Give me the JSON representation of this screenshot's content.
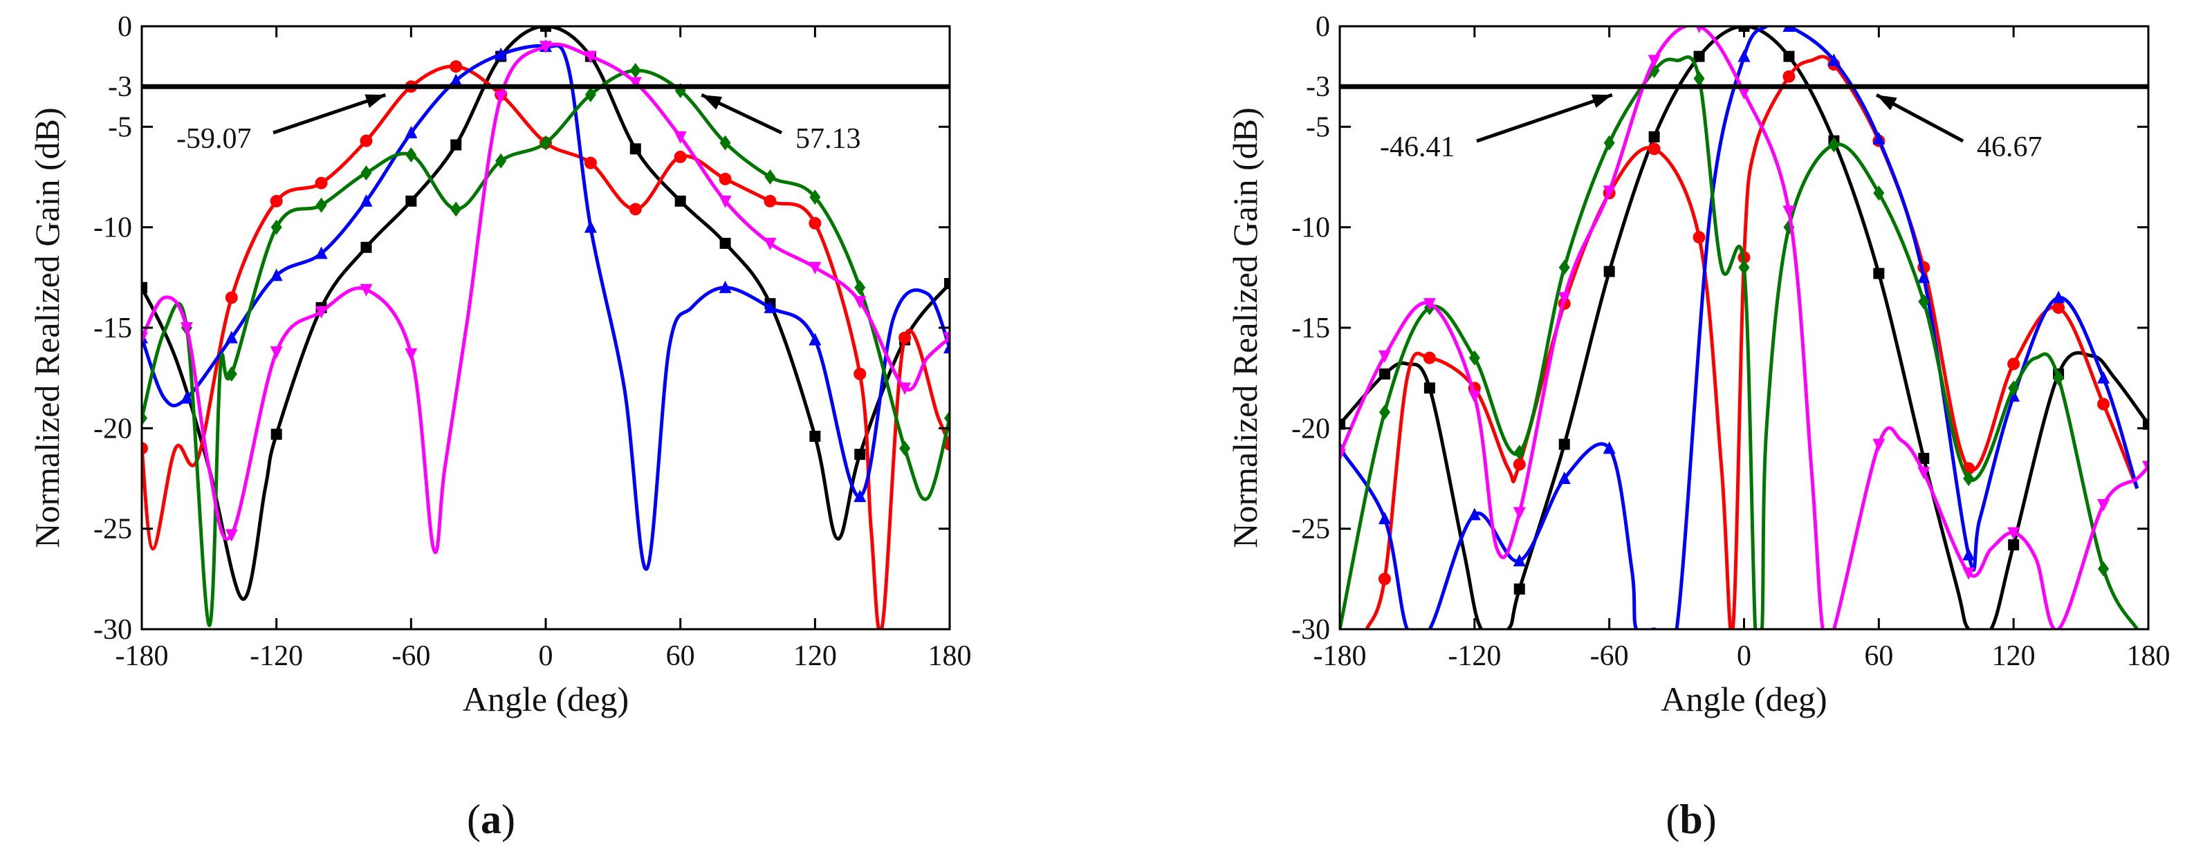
{
  "chart_data": [
    {
      "type": "line",
      "panel_label_open": "(",
      "panel_label_letter": "a",
      "panel_label_close": ")",
      "xlabel": "Angle (deg)",
      "ylabel": "Normalized Realized Gain (dB)",
      "xlim": [
        -180,
        180
      ],
      "ylim": [
        -30,
        0
      ],
      "xticks": [
        -180,
        -120,
        -60,
        0,
        60,
        120,
        180
      ],
      "xtick_labels": [
        "-180",
        "-120",
        "-60",
        "0",
        "60",
        "120",
        "180"
      ],
      "yticks": [
        0,
        -3,
        -5,
        -10,
        -15,
        -20,
        -25,
        -30
      ],
      "ytick_labels": [
        "0",
        "-3",
        "-5",
        "-10",
        "-15",
        "-20",
        "-25",
        "-30"
      ],
      "reference_line_y": -3,
      "annotations": [
        {
          "text": "-59.07",
          "x": -59.07,
          "y": -3
        },
        {
          "text": "57.13",
          "x": 57.13,
          "y": -3
        }
      ],
      "series": [
        {
          "name": "black",
          "color": "#000000",
          "marker": "square",
          "x": [
            -180,
            -165,
            -150,
            -135,
            -125,
            -120,
            -100,
            -80,
            -60,
            -40,
            -20,
            0,
            20,
            40,
            60,
            80,
            100,
            120,
            130,
            140,
            160,
            180
          ],
          "y": [
            -13,
            -16.5,
            -22,
            -28.5,
            -23,
            -20.3,
            -14,
            -11,
            -8.7,
            -5.9,
            -1.5,
            0,
            -1.5,
            -6.1,
            -8.7,
            -10.8,
            -13.8,
            -20.4,
            -25.5,
            -21.3,
            -15.6,
            -12.8
          ]
        },
        {
          "name": "red",
          "color": "#ff0000",
          "marker": "circle",
          "x": [
            -180,
            -175,
            -165,
            -155,
            -140,
            -120,
            -100,
            -80,
            -60,
            -40,
            -20,
            0,
            20,
            40,
            60,
            80,
            100,
            120,
            140,
            145,
            150,
            160,
            175,
            180
          ],
          "y": [
            -21,
            -26,
            -21,
            -21.5,
            -13.5,
            -8.7,
            -7.8,
            -5.7,
            -3,
            -2,
            -3.4,
            -5.8,
            -6.8,
            -9.1,
            -6.5,
            -7.6,
            -8.7,
            -9.8,
            -17.3,
            -25,
            -29.8,
            -15.5,
            -19.5,
            -20.8
          ]
        },
        {
          "name": "blue",
          "color": "#0000ff",
          "marker": "triangle-up",
          "x": [
            -180,
            -170,
            -160,
            -140,
            -120,
            -100,
            -80,
            -60,
            -40,
            -20,
            0,
            10,
            20,
            35,
            45,
            55,
            65,
            80,
            100,
            120,
            140,
            155,
            170,
            180
          ],
          "y": [
            -15.5,
            -18.5,
            -18.5,
            -15.5,
            -12.4,
            -11.3,
            -8.7,
            -5.3,
            -2.7,
            -1.4,
            -1,
            -2,
            -10,
            -18,
            -27,
            -16,
            -14,
            -13,
            -14,
            -15.6,
            -23.4,
            -14.5,
            -13.3,
            -16
          ]
        },
        {
          "name": "green",
          "color": "#007700",
          "marker": "diamond",
          "x": [
            -180,
            -170,
            -160,
            -150,
            -145,
            -140,
            -120,
            -100,
            -80,
            -60,
            -40,
            -20,
            0,
            20,
            40,
            60,
            80,
            100,
            120,
            140,
            160,
            170,
            180
          ],
          "y": [
            -19.5,
            -15.2,
            -15,
            -29.8,
            -17,
            -17.3,
            -10,
            -8.9,
            -7.3,
            -6.4,
            -9.1,
            -6.7,
            -5.8,
            -3.4,
            -2.2,
            -3.2,
            -5.8,
            -7.5,
            -8.5,
            -13,
            -21,
            -23.5,
            -19.5
          ]
        },
        {
          "name": "magenta",
          "color": "#ff00ff",
          "marker": "triangle-down",
          "x": [
            -180,
            -170,
            -160,
            -150,
            -140,
            -120,
            -100,
            -80,
            -60,
            -50,
            -45,
            -35,
            -20,
            0,
            20,
            40,
            60,
            80,
            100,
            120,
            140,
            160,
            170,
            180
          ],
          "y": [
            -15.5,
            -13.5,
            -15,
            -22,
            -25.3,
            -16.2,
            -14.2,
            -13.1,
            -16.3,
            -26,
            -22,
            -14.7,
            -3.5,
            -1,
            -1.5,
            -2.8,
            -5.5,
            -8.7,
            -10.8,
            -12,
            -13.7,
            -18,
            -16.5,
            -15.5
          ]
        }
      ]
    },
    {
      "type": "line",
      "panel_label_open": "(",
      "panel_label_letter": "b",
      "panel_label_close": ")",
      "xlabel": "Angle (deg)",
      "ylabel": "Normalized Realized Gain (dB)",
      "xlim": [
        -180,
        180
      ],
      "ylim": [
        -30,
        0
      ],
      "xticks": [
        -180,
        -120,
        -60,
        0,
        60,
        120,
        180
      ],
      "xtick_labels": [
        "-180",
        "-120",
        "-60",
        "0",
        "60",
        "120",
        "180"
      ],
      "yticks": [
        0,
        -3,
        -5,
        -10,
        -15,
        -20,
        -25,
        -30
      ],
      "ytick_labels": [
        "0",
        "-3",
        "-5",
        "-10",
        "-15",
        "-20",
        "-25",
        "-30"
      ],
      "reference_line_y": -3,
      "annotations": [
        {
          "text": "-46.41",
          "x": -46.41,
          "y": -3
        },
        {
          "text": "46.67",
          "x": 46.67,
          "y": -3
        }
      ],
      "series": [
        {
          "name": "black",
          "color": "#000000",
          "marker": "square",
          "x": [
            -180,
            -160,
            -150,
            -140,
            -125,
            -117,
            -105,
            -100,
            -80,
            -60,
            -40,
            -20,
            0,
            20,
            40,
            60,
            80,
            95,
            100,
            110,
            120,
            140,
            155,
            165,
            180
          ],
          "y": [
            -19.8,
            -17.3,
            -16.8,
            -18,
            -26,
            -30,
            -30,
            -28,
            -20.8,
            -12.2,
            -5.5,
            -1.5,
            0,
            -1.5,
            -5.7,
            -12.3,
            -21.5,
            -28,
            -30,
            -30,
            -25.8,
            -17.3,
            -16.4,
            -17.5,
            -19.8
          ]
        },
        {
          "name": "red",
          "color": "#ff0000",
          "marker": "circle",
          "x": [
            -168,
            -160,
            -150,
            -140,
            -120,
            -105,
            -100,
            -80,
            -60,
            -40,
            -20,
            -10,
            -5,
            0,
            5,
            20,
            30,
            40,
            60,
            80,
            100,
            120,
            140,
            160,
            175
          ],
          "y": [
            -30,
            -27.5,
            -17.5,
            -16.5,
            -18,
            -22,
            -21.8,
            -13.8,
            -8.3,
            -6.1,
            -10.5,
            -22,
            -30,
            -11.5,
            -6,
            -2.5,
            -1.7,
            -1.9,
            -5.7,
            -12,
            -22,
            -16.8,
            -14,
            -18.8,
            -23
          ]
        },
        {
          "name": "blue",
          "color": "#0000ff",
          "marker": "triangle-up",
          "x": [
            -180,
            -160,
            -150,
            -140,
            -120,
            -100,
            -80,
            -60,
            -50,
            -48,
            -40,
            -30,
            -15,
            0,
            10,
            20,
            40,
            60,
            80,
            100,
            105,
            120,
            140,
            160,
            175
          ],
          "y": [
            -21,
            -24.5,
            -30,
            -30,
            -24.3,
            -26.6,
            -22.5,
            -21,
            -27,
            -30,
            -30,
            -30,
            -9.2,
            -1.5,
            0,
            0,
            -1.7,
            -5.6,
            -12.5,
            -26.3,
            -24.5,
            -18.4,
            -13.5,
            -17.5,
            -23
          ]
        },
        {
          "name": "green",
          "color": "#007700",
          "marker": "diamond",
          "x": [
            -180,
            -160,
            -140,
            -120,
            -100,
            -80,
            -60,
            -40,
            -30,
            -20,
            -10,
            0,
            5,
            8,
            10,
            20,
            40,
            60,
            80,
            100,
            120,
            130,
            140,
            160,
            175
          ],
          "y": [
            -30,
            -19.2,
            -14,
            -16.5,
            -21.2,
            -12,
            -5.8,
            -2.2,
            -1.7,
            -2.6,
            -12,
            -12,
            -30,
            -30,
            -20,
            -10,
            -5.9,
            -8.3,
            -13.7,
            -22.5,
            -18,
            -16.5,
            -17.5,
            -27,
            -30
          ]
        },
        {
          "name": "magenta",
          "color": "#ff00ff",
          "marker": "triangle-down",
          "x": [
            -180,
            -160,
            -140,
            -120,
            -110,
            -100,
            -80,
            -60,
            -40,
            -20,
            0,
            20,
            30,
            35,
            40,
            60,
            70,
            80,
            100,
            110,
            120,
            130,
            140,
            160,
            175,
            180
          ],
          "y": [
            -21.3,
            -16.4,
            -13.8,
            -18.4,
            -26,
            -24.2,
            -13.5,
            -8.2,
            -1.7,
            0,
            -3.3,
            -9.2,
            -22,
            -30,
            -30,
            -20.8,
            -20.6,
            -22.2,
            -27.2,
            -26,
            -25.2,
            -26.5,
            -30,
            -23.8,
            -22.5,
            -21.9
          ]
        }
      ]
    }
  ]
}
